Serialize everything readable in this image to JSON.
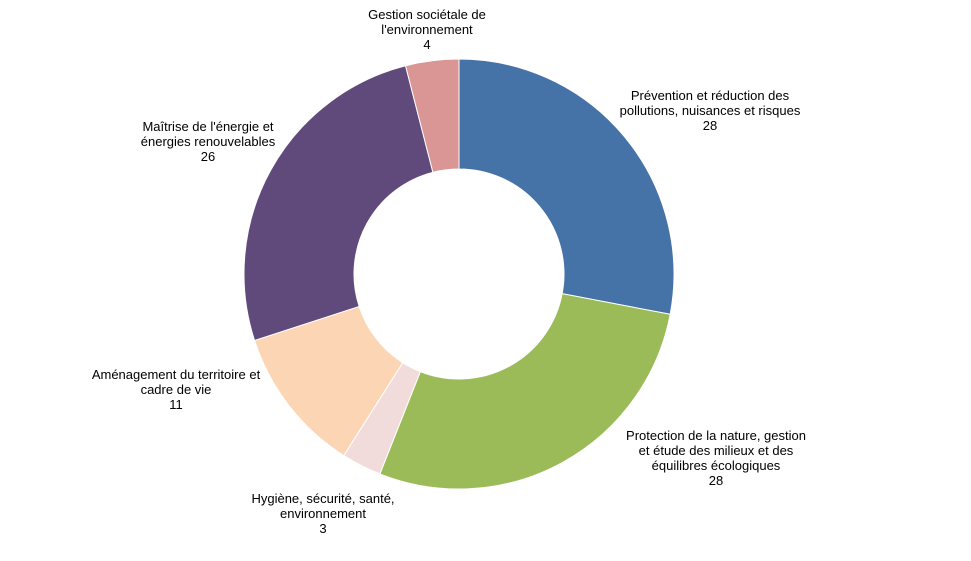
{
  "chart_data": {
    "type": "pie",
    "title": "",
    "total": 100,
    "slices": [
      {
        "lines": [
          "Prévention et réduction des",
          "pollutions, nuisances et risques"
        ],
        "value": 28,
        "value_label": "28",
        "color": "#4572A7"
      },
      {
        "lines": [
          "Protection de la nature, gestion",
          "et étude des milieux et des",
          "équilibres écologiques"
        ],
        "value": 28,
        "value_label": "28",
        "color": "#9BBB59"
      },
      {
        "lines": [
          "Hygiène, sécurité, santé,",
          "environnement"
        ],
        "value": 3,
        "value_label": "3",
        "color": "#F2DCDB"
      },
      {
        "lines": [
          "Aménagement du territoire et",
          "cadre de vie"
        ],
        "value": 11,
        "value_label": "11",
        "color": "#FCD5B5"
      },
      {
        "lines": [
          "Maîtrise de l'énergie et",
          "énergies renouvelables"
        ],
        "value": 26,
        "value_label": "26",
        "color": "#604A7B"
      },
      {
        "lines": [
          "Gestion sociétale de",
          "l'environnement"
        ],
        "value": 4,
        "value_label": "4",
        "color": "#D99694"
      }
    ]
  }
}
